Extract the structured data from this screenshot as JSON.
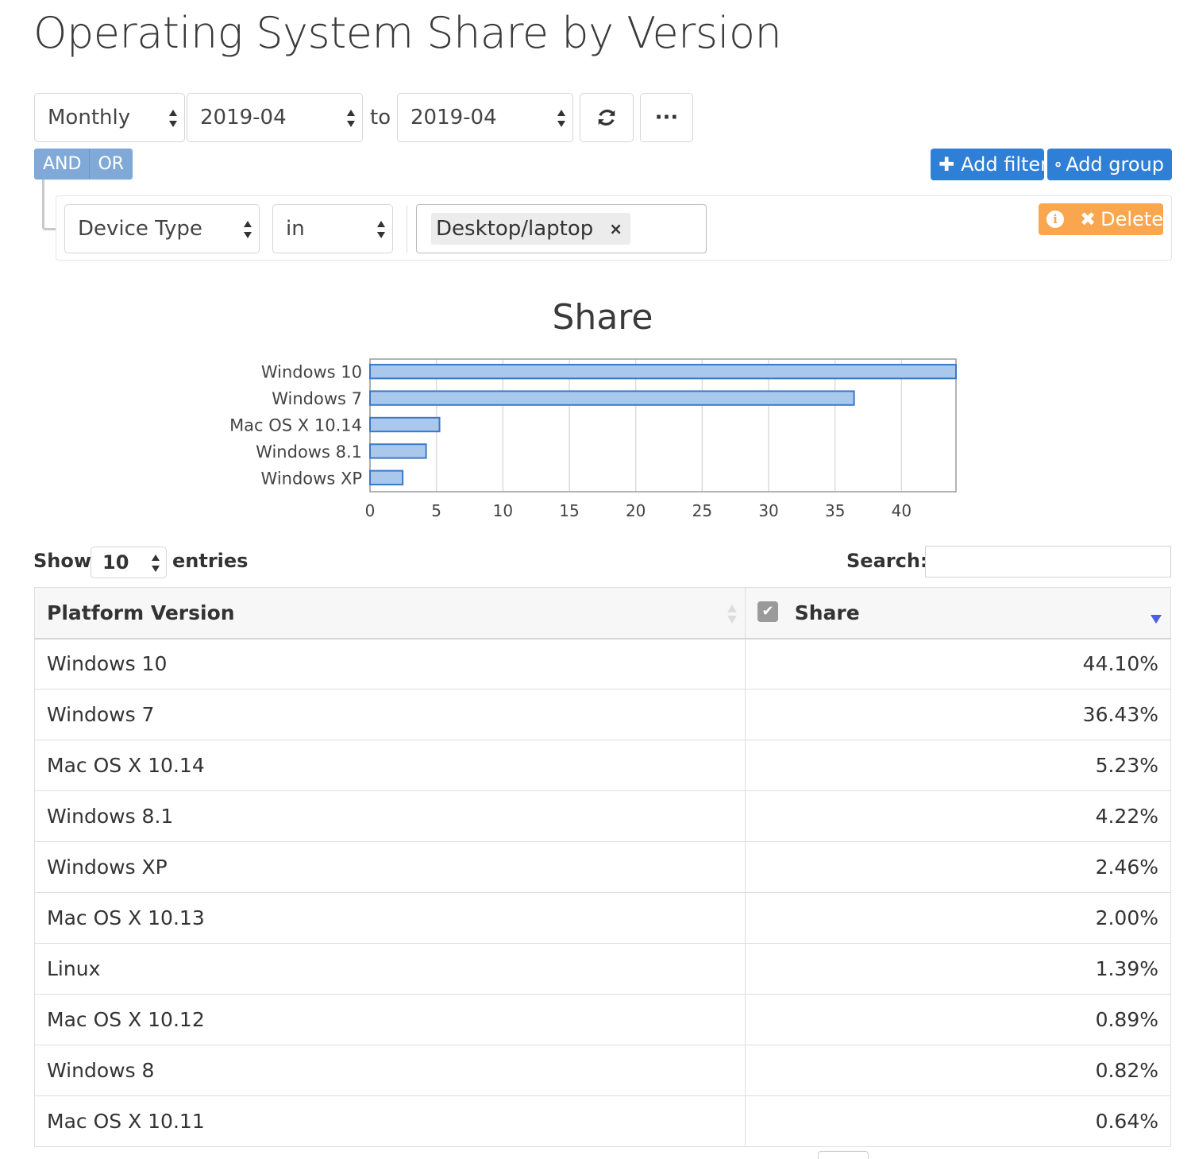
{
  "page": {
    "title": "Operating System Share by Version"
  },
  "controls": {
    "period": "Monthly",
    "start_date": "2019-04",
    "to_label": "to",
    "end_date": "2019-04",
    "refresh_icon": "refresh-icon",
    "more_label": "···"
  },
  "query_builder": {
    "and_label": "AND",
    "or_label": "OR",
    "add_filter_icon": "plus-icon",
    "add_filter_label": "Add filter",
    "add_group_icon": "plus-circle-icon",
    "add_group_label": "Add group",
    "rule": {
      "field": "Device Type",
      "operator": "in",
      "values": [
        "Desktop/laptop"
      ],
      "remove_value_label": "×"
    },
    "info_icon_label": "i",
    "delete_icon": "✖",
    "delete_label": "Delete"
  },
  "chart_data": {
    "type": "bar",
    "orientation": "horizontal",
    "title": "Share",
    "categories": [
      "Windows 10",
      "Windows 7",
      "Mac OS X 10.14",
      "Windows 8.1",
      "Windows XP"
    ],
    "values": [
      44.1,
      36.43,
      5.23,
      4.22,
      2.46
    ],
    "xlim": [
      0,
      44.1
    ],
    "xticks": [
      0,
      5,
      10,
      15,
      20,
      25,
      30,
      35,
      40
    ],
    "grid": true,
    "legend": "none",
    "bar_fill": "#aac8ec",
    "bar_stroke": "#3a78c9"
  },
  "table": {
    "show_label": "Show",
    "page_length": "10",
    "entries_label": "entries",
    "search_label": "Search:",
    "search_value": "",
    "columns": [
      {
        "label": "Platform Version"
      },
      {
        "label": "Share"
      }
    ],
    "rows": [
      {
        "version": "Windows 10",
        "share": "44.10%"
      },
      {
        "version": "Windows 7",
        "share": "36.43%"
      },
      {
        "version": "Mac OS X 10.14",
        "share": "5.23%"
      },
      {
        "version": "Windows 8.1",
        "share": "4.22%"
      },
      {
        "version": "Windows XP",
        "share": "2.46%"
      },
      {
        "version": "Mac OS X 10.13",
        "share": "2.00%"
      },
      {
        "version": "Linux",
        "share": "1.39%"
      },
      {
        "version": "Mac OS X 10.12",
        "share": "0.89%"
      },
      {
        "version": "Windows 8",
        "share": "0.82%"
      },
      {
        "version": "Mac OS X 10.11",
        "share": "0.64%"
      }
    ]
  }
}
